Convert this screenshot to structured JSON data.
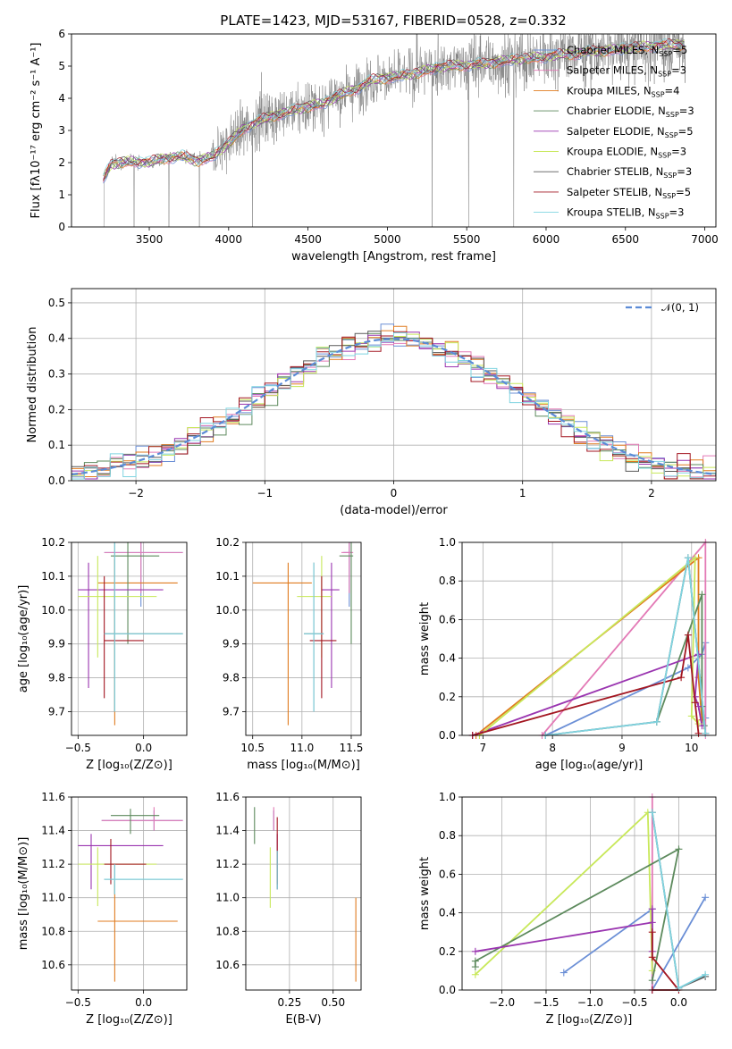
{
  "title": "PLATE=1423, MJD=53167, FIBERID=0528, z=0.332",
  "colors": {
    "chabrier_miles": "#6b8fd6",
    "salpeter_miles": "#e37ab6",
    "kroupa_miles": "#e07b1f",
    "chabrier_elodie": "#5d8a5d",
    "salpeter_elodie": "#9a35b0",
    "kroupa_elodie": "#c8e85a",
    "chabrier_stelib": "#5a5a5a",
    "salpeter_stelib": "#a31621",
    "kroupa_stelib": "#7fd4e0",
    "data": "#808080",
    "normal": "#5b8bd6"
  },
  "chart_data": [
    {
      "type": "line",
      "panel": "spectrum",
      "xlabel": "wavelength [Angstrom, rest frame]",
      "ylabel": "Flux [fλ10⁻¹⁷ erg cm⁻² s⁻¹ A⁻¹]",
      "xlim": [
        3010,
        7070
      ],
      "ylim": [
        0,
        6
      ],
      "xticks": [
        "3500",
        "4000",
        "4500",
        "5000",
        "5500",
        "6000",
        "6500",
        "7000"
      ],
      "yticks": [
        "0",
        "1",
        "2",
        "3",
        "4",
        "5",
        "6"
      ],
      "continuum": [
        [
          3210,
          1.5
        ],
        [
          3260,
          1.95
        ],
        [
          3400,
          2.05
        ],
        [
          3500,
          2.0
        ],
        [
          3600,
          2.15
        ],
        [
          3700,
          2.2
        ],
        [
          3800,
          2.05
        ],
        [
          3900,
          2.2
        ],
        [
          4000,
          2.6
        ],
        [
          4100,
          3.1
        ],
        [
          4200,
          3.3
        ],
        [
          4300,
          3.5
        ],
        [
          4400,
          3.6
        ],
        [
          4500,
          3.75
        ],
        [
          4600,
          3.85
        ],
        [
          4700,
          4.1
        ],
        [
          4800,
          4.3
        ],
        [
          4900,
          4.55
        ],
        [
          5000,
          4.65
        ],
        [
          5100,
          4.7
        ],
        [
          5200,
          4.8
        ],
        [
          5300,
          4.95
        ],
        [
          5400,
          5.0
        ],
        [
          5500,
          5.05
        ],
        [
          5600,
          5.05
        ],
        [
          5700,
          5.15
        ],
        [
          5800,
          5.2
        ],
        [
          5900,
          5.25
        ],
        [
          6000,
          5.3
        ],
        [
          6100,
          5.35
        ],
        [
          6200,
          5.4
        ],
        [
          6300,
          5.45
        ],
        [
          6400,
          5.5
        ],
        [
          6500,
          5.55
        ],
        [
          6600,
          5.6
        ],
        [
          6700,
          5.65
        ],
        [
          6800,
          5.65
        ],
        [
          6880,
          5.7
        ]
      ],
      "legend": [
        {
          "name": "Chabrier MILES, N",
          "ssp": "=5",
          "key": "chabrier_miles"
        },
        {
          "name": "Salpeter MILES, N",
          "ssp": "=3",
          "key": "salpeter_miles"
        },
        {
          "name": "Kroupa MILES, N",
          "ssp": "=4",
          "key": "kroupa_miles"
        },
        {
          "name": "Chabrier ELODIE, N",
          "ssp": "=3",
          "key": "chabrier_elodie"
        },
        {
          "name": "Salpeter ELODIE, N",
          "ssp": "=5",
          "key": "salpeter_elodie"
        },
        {
          "name": "Kroupa ELODIE, N",
          "ssp": "=3",
          "key": "kroupa_elodie"
        },
        {
          "name": "Chabrier STELIB, N",
          "ssp": "=3",
          "key": "chabrier_stelib"
        },
        {
          "name": "Salpeter STELIB, N",
          "ssp": "=5",
          "key": "salpeter_stelib"
        },
        {
          "name": "Kroupa STELIB, N",
          "ssp": "=3",
          "key": "kroupa_stelib"
        }
      ],
      "legend_sub": "SSP",
      "legend_position": "upper right"
    },
    {
      "type": "line",
      "panel": "residuals",
      "xlabel": "(data-model)/error",
      "ylabel": "Normed distribution",
      "xlim": [
        -2.5,
        2.5
      ],
      "ylim": [
        0,
        0.54
      ],
      "xticks": [
        "−2",
        "−1",
        "0",
        "1",
        "2"
      ],
      "yticks": [
        "0.0",
        "0.1",
        "0.2",
        "0.3",
        "0.4",
        "0.5"
      ],
      "normal_label": "𝒩(0, 1)",
      "bin_width": 0.1,
      "grid": true
    },
    {
      "type": "scatter",
      "panel": "age-Z",
      "xlabel": "Z [log₁₀(Z/Z⊙)]",
      "ylabel": "age  [log₁₀(age/yr)]",
      "xlim": [
        -0.55,
        0.33
      ],
      "ylim": [
        9.63,
        10.2
      ],
      "xticks": [
        "−0.5",
        "0.0"
      ],
      "yticks": [
        "9.7",
        "9.8",
        "9.9",
        "10.0",
        "10.1",
        "10.2"
      ],
      "points": [
        {
          "key": "chabrier_miles",
          "x": -0.02,
          "y": 10.17,
          "xl": -0.3,
          "xh": 0.3,
          "yl": 10.01,
          "yh": 10.2
        },
        {
          "key": "salpeter_miles",
          "x": -0.02,
          "y": 10.17,
          "xl": -0.3,
          "xh": 0.3,
          "yl": 10.05,
          "yh": 10.2
        },
        {
          "key": "kroupa_miles",
          "x": -0.22,
          "y": 10.08,
          "xl": -0.35,
          "xh": 0.26,
          "yl": 9.66,
          "yh": 10.15
        },
        {
          "key": "chabrier_elodie",
          "x": -0.12,
          "y": 10.16,
          "xl": -0.25,
          "xh": 0.12,
          "yl": 9.9,
          "yh": 10.2
        },
        {
          "key": "salpeter_elodie",
          "x": -0.42,
          "y": 10.06,
          "xl": -0.5,
          "xh": 0.15,
          "yl": 9.77,
          "yh": 10.14
        },
        {
          "key": "kroupa_elodie",
          "x": -0.35,
          "y": 10.04,
          "xl": -0.5,
          "xh": 0.1,
          "yl": 9.86,
          "yh": 10.16
        },
        {
          "key": "chabrier_stelib",
          "x": -0.22,
          "y": 9.93,
          "xl": -0.3,
          "xh": 0.3,
          "yl": 9.7,
          "yh": 10.2
        },
        {
          "key": "salpeter_stelib",
          "x": -0.3,
          "y": 9.91,
          "xl": -0.3,
          "xh": 0.0,
          "yl": 9.74,
          "yh": 10.1
        },
        {
          "key": "kroupa_stelib",
          "x": -0.22,
          "y": 9.93,
          "xl": -0.3,
          "xh": 0.3,
          "yl": 9.7,
          "yh": 10.2
        }
      ]
    },
    {
      "type": "scatter",
      "panel": "age-mass",
      "xlabel": "mass [log₁₀(M/M⊙)]",
      "ylabel": "",
      "xlim": [
        10.43,
        11.6
      ],
      "ylim": [
        9.63,
        10.2
      ],
      "xticks": [
        "10.5",
        "11.0",
        "11.5"
      ],
      "yticks": [
        "9.7",
        "9.8",
        "9.9",
        "10.0",
        "10.1",
        "10.2"
      ],
      "points": [
        {
          "key": "chabrier_miles",
          "x": 11.48,
          "y": 10.17,
          "xl": 11.42,
          "xh": 11.5,
          "yl": 10.01,
          "yh": 10.2
        },
        {
          "key": "salpeter_miles",
          "x": 11.48,
          "y": 10.17,
          "xl": 11.4,
          "xh": 11.52,
          "yl": 10.05,
          "yh": 10.2
        },
        {
          "key": "kroupa_miles",
          "x": 10.86,
          "y": 10.08,
          "xl": 10.5,
          "xh": 11.1,
          "yl": 9.66,
          "yh": 10.14
        },
        {
          "key": "chabrier_elodie",
          "x": 11.5,
          "y": 10.16,
          "xl": 11.38,
          "xh": 11.52,
          "yl": 9.9,
          "yh": 10.2
        },
        {
          "key": "salpeter_elodie",
          "x": 11.3,
          "y": 10.06,
          "xl": 11.2,
          "xh": 11.38,
          "yl": 9.77,
          "yh": 10.14
        },
        {
          "key": "kroupa_elodie",
          "x": 11.2,
          "y": 10.04,
          "xl": 10.95,
          "xh": 11.3,
          "yl": 9.86,
          "yh": 10.16
        },
        {
          "key": "chabrier_stelib",
          "x": 11.12,
          "y": 9.93,
          "xl": 11.02,
          "xh": 11.22,
          "yl": 9.7,
          "yh": 10.14
        },
        {
          "key": "salpeter_stelib",
          "x": 11.2,
          "y": 9.91,
          "xl": 11.08,
          "xh": 11.35,
          "yl": 9.74,
          "yh": 10.1
        },
        {
          "key": "kroupa_stelib",
          "x": 11.12,
          "y": 9.93,
          "xl": 11.02,
          "xh": 11.22,
          "yl": 9.7,
          "yh": 10.14
        }
      ]
    },
    {
      "type": "line",
      "panel": "weight-age",
      "xlabel": "age  [log₁₀(age/yr)]",
      "ylabel": "mass weight",
      "xlim": [
        6.7,
        10.35
      ],
      "ylim": [
        0,
        1
      ],
      "xticks": [
        "7",
        "8",
        "9",
        "10"
      ],
      "yticks": [
        "0.0",
        "0.2",
        "0.4",
        "0.6",
        "0.8",
        "1.0"
      ],
      "series": [
        {
          "key": "chabrier_miles",
          "points": [
            [
              7.9,
              0.0
            ],
            [
              9.95,
              0.35
            ],
            [
              10.15,
              0.42
            ],
            [
              10.2,
              0.48
            ],
            [
              10.2,
              0.09
            ]
          ]
        },
        {
          "key": "salpeter_miles",
          "points": [
            [
              7.85,
              0.0
            ],
            [
              10.2,
              1.0
            ],
            [
              10.2,
              0.0
            ]
          ]
        },
        {
          "key": "kroupa_miles",
          "points": [
            [
              6.9,
              0.0
            ],
            [
              10.1,
              0.92
            ],
            [
              10.1,
              0.3
            ],
            [
              10.15,
              0.08
            ]
          ]
        },
        {
          "key": "chabrier_elodie",
          "points": [
            [
              9.5,
              0.07
            ],
            [
              10.15,
              0.73
            ],
            [
              10.15,
              0.15
            ],
            [
              10.18,
              0.05
            ]
          ]
        },
        {
          "key": "salpeter_elodie",
          "points": [
            [
              6.85,
              0.0
            ],
            [
              10.1,
              0.42
            ],
            [
              10.05,
              0.2
            ],
            [
              10.1,
              0.15
            ],
            [
              10.15,
              0.05
            ]
          ]
        },
        {
          "key": "kroupa_elodie",
          "points": [
            [
              6.95,
              0.0
            ],
            [
              10.05,
              0.92
            ],
            [
              10.0,
              0.1
            ],
            [
              10.1,
              0.06
            ]
          ]
        },
        {
          "key": "chabrier_stelib",
          "points": [
            [
              7.9,
              0.0
            ],
            [
              9.5,
              0.07
            ],
            [
              9.95,
              0.92
            ],
            [
              10.2,
              0.01
            ]
          ]
        },
        {
          "key": "salpeter_stelib",
          "points": [
            [
              6.85,
              0.0
            ],
            [
              9.85,
              0.3
            ],
            [
              9.95,
              0.52
            ],
            [
              10.05,
              0.17
            ],
            [
              10.1,
              0.01
            ]
          ]
        },
        {
          "key": "kroupa_stelib",
          "points": [
            [
              7.9,
              0.0
            ],
            [
              9.5,
              0.07
            ],
            [
              9.95,
              0.92
            ],
            [
              10.2,
              0.01
            ]
          ]
        }
      ]
    },
    {
      "type": "scatter",
      "panel": "mass-Z",
      "xlabel": "Z [log₁₀(Z/Z⊙)]",
      "ylabel": "mass [log₁₀(M/M⊙)]",
      "xlim": [
        -0.55,
        0.33
      ],
      "ylim": [
        10.45,
        11.6
      ],
      "xticks": [
        "−0.5",
        "0.0"
      ],
      "yticks": [
        "10.6",
        "10.8",
        "11.0",
        "11.2",
        "11.4",
        "11.6"
      ],
      "points": [
        {
          "key": "chabrier_miles",
          "x": 0.08,
          "y": 11.46,
          "xl": -0.32,
          "xh": 0.3,
          "yl": 11.4,
          "yh": 11.52
        },
        {
          "key": "salpeter_miles",
          "x": 0.08,
          "y": 11.46,
          "xl": -0.32,
          "xh": 0.3,
          "yl": 11.4,
          "yh": 11.54
        },
        {
          "key": "kroupa_miles",
          "x": -0.22,
          "y": 10.86,
          "xl": -0.35,
          "xh": 0.26,
          "yl": 10.5,
          "yh": 11.1
        },
        {
          "key": "chabrier_elodie",
          "x": -0.1,
          "y": 11.49,
          "xl": -0.25,
          "xh": 0.12,
          "yl": 11.38,
          "yh": 11.53
        },
        {
          "key": "salpeter_elodie",
          "x": -0.4,
          "y": 11.31,
          "xl": -0.5,
          "xh": 0.15,
          "yl": 11.05,
          "yh": 11.38
        },
        {
          "key": "kroupa_elodie",
          "x": -0.35,
          "y": 11.2,
          "xl": -0.5,
          "xh": 0.1,
          "yl": 10.95,
          "yh": 11.3
        },
        {
          "key": "chabrier_stelib",
          "x": -0.22,
          "y": 11.11,
          "xl": -0.3,
          "xh": 0.3,
          "yl": 11.02,
          "yh": 11.2
        },
        {
          "key": "salpeter_stelib",
          "x": -0.25,
          "y": 11.2,
          "xl": -0.3,
          "xh": 0.02,
          "yl": 11.08,
          "yh": 11.35
        },
        {
          "key": "kroupa_stelib",
          "x": -0.22,
          "y": 11.11,
          "xl": -0.3,
          "xh": 0.3,
          "yl": 11.02,
          "yh": 11.2
        }
      ]
    },
    {
      "type": "scatter",
      "panel": "mass-ebv",
      "xlabel": "E(B-V)",
      "ylabel": "",
      "xlim": [
        0.0,
        0.66
      ],
      "ylim": [
        10.45,
        11.6
      ],
      "xticks": [
        "0.25",
        "0.50"
      ],
      "yticks": [
        "10.6",
        "10.8",
        "11.0",
        "11.2",
        "11.4",
        "11.6"
      ],
      "points": [
        {
          "key": "chabrier_miles",
          "x": 0.16,
          "y": 11.46,
          "yl": 11.4,
          "yh": 11.52
        },
        {
          "key": "salpeter_miles",
          "x": 0.16,
          "y": 11.46,
          "yl": 11.4,
          "yh": 11.54
        },
        {
          "key": "kroupa_miles",
          "x": 0.63,
          "y": 10.86,
          "yl": 10.5,
          "yh": 11.0
        },
        {
          "key": "chabrier_elodie",
          "x": 0.05,
          "y": 11.45,
          "yl": 11.32,
          "yh": 11.54
        },
        {
          "key": "salpeter_elodie",
          "x": 0.18,
          "y": 11.31,
          "yl": 11.05,
          "yh": 11.38
        },
        {
          "key": "kroupa_elodie",
          "x": 0.14,
          "y": 11.2,
          "yl": 10.94,
          "yh": 11.3
        },
        {
          "key": "chabrier_stelib",
          "x": 0.18,
          "y": 11.15,
          "yl": 11.05,
          "yh": 11.28
        },
        {
          "key": "salpeter_stelib",
          "x": 0.18,
          "y": 11.3,
          "yl": 11.08,
          "yh": 11.48
        },
        {
          "key": "kroupa_stelib",
          "x": 0.18,
          "y": 11.15,
          "yl": 11.05,
          "yh": 11.28
        }
      ]
    },
    {
      "type": "line",
      "panel": "weight-Z",
      "xlabel": "Z [log₁₀(Z/Z⊙)]",
      "ylabel": "mass weight",
      "xlim": [
        -2.45,
        0.42
      ],
      "ylim": [
        0,
        1
      ],
      "xticks": [
        "−2.0",
        "−1.5",
        "−1.0",
        "−0.5",
        "0.0"
      ],
      "yticks": [
        "0.0",
        "0.2",
        "0.4",
        "0.6",
        "0.8",
        "1.0"
      ],
      "series": [
        {
          "key": "chabrier_miles",
          "points": [
            [
              -1.3,
              0.09
            ],
            [
              -0.3,
              0.42
            ],
            [
              -0.3,
              0.0
            ],
            [
              0.3,
              0.48
            ]
          ]
        },
        {
          "key": "salpeter_miles",
          "points": [
            [
              -0.3,
              1.0
            ],
            [
              -0.3,
              0.0
            ]
          ]
        },
        {
          "key": "kroupa_elodie",
          "points": [
            [
              -2.3,
              0.08
            ],
            [
              -0.35,
              0.92
            ],
            [
              -0.3,
              0.1
            ]
          ]
        },
        {
          "key": "chabrier_elodie",
          "points": [
            [
              -2.3,
              0.12
            ],
            [
              -2.3,
              0.15
            ],
            [
              0.0,
              0.73
            ],
            [
              -0.3,
              0.05
            ]
          ]
        },
        {
          "key": "salpeter_elodie",
          "points": [
            [
              -2.3,
              0.2
            ],
            [
              -0.3,
              0.35
            ],
            [
              -0.3,
              0.42
            ],
            [
              -0.3,
              0.2
            ]
          ]
        },
        {
          "key": "chabrier_stelib",
          "points": [
            [
              -0.3,
              0.92
            ],
            [
              0.0,
              0.01
            ],
            [
              0.3,
              0.07
            ]
          ]
        },
        {
          "key": "salpeter_stelib",
          "points": [
            [
              -0.3,
              0.3
            ],
            [
              -0.3,
              0.17
            ],
            [
              0.0,
              0.0
            ],
            [
              -0.3,
              0.0
            ]
          ]
        },
        {
          "key": "kroupa_stelib",
          "points": [
            [
              -0.3,
              0.92
            ],
            [
              0.0,
              0.01
            ],
            [
              0.3,
              0.08
            ]
          ]
        }
      ]
    }
  ]
}
